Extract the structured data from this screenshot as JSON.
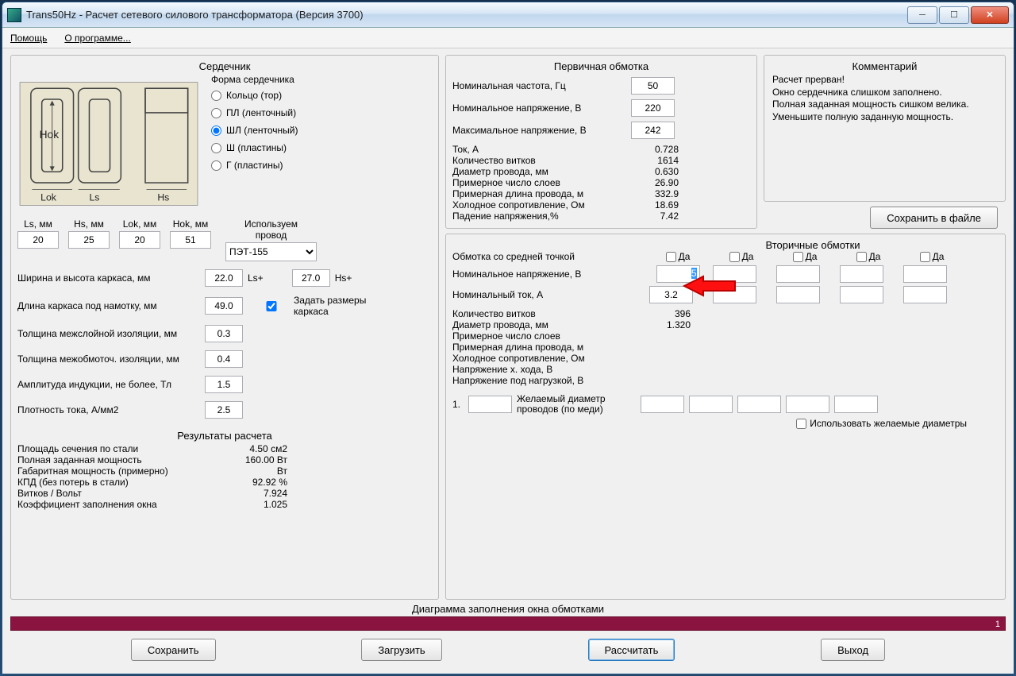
{
  "title": "Trans50Hz - Расчет сетевого силового трансформатора (Версия 3700)",
  "menu": {
    "help": "Помощь",
    "about": "О программе..."
  },
  "core": {
    "title": "Сердечник",
    "form_label": "Форма сердечника",
    "options": [
      {
        "label": "Кольцо (тор)",
        "checked": false
      },
      {
        "label": "ПЛ (ленточный)",
        "checked": false
      },
      {
        "label": "ШЛ (ленточный)",
        "checked": true
      },
      {
        "label": "Ш  (пластины)",
        "checked": false
      },
      {
        "label": "Г (пластины)",
        "checked": false
      }
    ],
    "wire_label1": "Используем",
    "wire_label2": "провод",
    "wire_value": "ПЭТ-155",
    "dims": {
      "ls_label": "Ls, мм",
      "ls": "20",
      "hs_label": "Hs, мм",
      "hs": "25",
      "lok_label": "Lok, мм",
      "lok": "20",
      "hok_label": "Hok, мм",
      "hok": "51"
    },
    "frame_wh_label": "Ширина и высота каркаса, мм",
    "frame_w": "22.0",
    "frame_h": "27.0",
    "ls_plus": "Ls+",
    "hs_plus": "Hs+",
    "frame_len_label": "Длина каркаса под намотку, мм",
    "frame_len": "49.0",
    "set_frame_label": "Задать размеры каркаса",
    "set_frame_checked": true,
    "layer_iso_label": "Толщина межслойной изоляции, мм",
    "layer_iso": "0.3",
    "wind_iso_label": "Толщина межобмоточ. изоляции, мм",
    "wind_iso": "0.4",
    "b_max_label": "Амплитуда индукции, не более, Тл",
    "b_max": "1.5",
    "j_label": "Плотность тока, А/мм2",
    "j": "2.5"
  },
  "results": {
    "title": "Результаты расчета",
    "rows": [
      {
        "lbl": "Площадь сечения по стали",
        "val": "4.50 см2"
      },
      {
        "lbl": "Полная заданная мощность",
        "val": "160.00 Вт"
      },
      {
        "lbl": "Габаритная мощность (примерно)",
        "val": "Вт"
      },
      {
        "lbl": "КПД (без потерь в стали)",
        "val": "92.92 %"
      },
      {
        "lbl": "Витков / Вольт",
        "val": "7.924"
      },
      {
        "lbl": "Коэффициент заполнения окна",
        "val": "1.025"
      }
    ]
  },
  "primary": {
    "title": "Первичная обмотка",
    "freq_label": "Номинальная частота, Гц",
    "freq": "50",
    "u_nom_label": "Номинальное напряжение, В",
    "u_nom": "220",
    "u_max_label": "Максимальное напряжение, В",
    "u_max": "242",
    "stats": [
      {
        "lbl": "Ток, А",
        "val": "0.728"
      },
      {
        "lbl": "Количество витков",
        "val": "1614"
      },
      {
        "lbl": "Диаметр провода, мм",
        "val": "0.630"
      },
      {
        "lbl": "Примерное число слоев",
        "val": "26.90"
      },
      {
        "lbl": "Примерная длина провода, м",
        "val": "332.9"
      },
      {
        "lbl": "Холодное сопротивление, Ом",
        "val": "18.69"
      },
      {
        "lbl": "Падение напряжения,%",
        "val": "7.42"
      }
    ]
  },
  "comment": {
    "title": "Комментарий",
    "text": "Расчет прерван!\nОкно сердечника слишком заполнено.\nПолная заданная мощность сишком велика.\nУменьшите полную заданную мощность."
  },
  "save_file_btn": "Сохранить в файле",
  "secondary": {
    "title": "Вторичные обмотки",
    "midpoint_label": "Обмотка со средней точкой",
    "yes": "Да",
    "u_nom_label": "Номинальное напряжение, В",
    "u_nom_1": "5",
    "i_nom_label": "Номинальный ток, А",
    "i_nom_1": "3.2",
    "stats": [
      {
        "lbl": "Количество витков",
        "val": "396"
      },
      {
        "lbl": "Диаметр провода, мм",
        "val": "1.320"
      },
      {
        "lbl": "Примерное число слоев",
        "val": ""
      },
      {
        "lbl": "Примерная длина провода, м",
        "val": ""
      },
      {
        "lbl": "Холодное сопротивление, Ом",
        "val": ""
      },
      {
        "lbl": "Напряжение х. хода, В",
        "val": ""
      },
      {
        "lbl": "Напряжение под нагрузкой, В",
        "val": ""
      }
    ],
    "wish_num": "1.",
    "wish_label1": "Желаемый диаметр",
    "wish_label2": "проводов  (по меди)",
    "use_wish_label": "Использовать желаемые диаметры"
  },
  "diagram_label": "Диаграмма заполнения окна обмотками",
  "progress_text": "1",
  "buttons": {
    "save": "Сохранить",
    "load": "Загрузить",
    "calc": "Рассчитать",
    "exit": "Выход"
  },
  "svg_labels": {
    "hok": "Hok",
    "lok": "Lok",
    "ls": "Ls",
    "hs": "Hs"
  }
}
